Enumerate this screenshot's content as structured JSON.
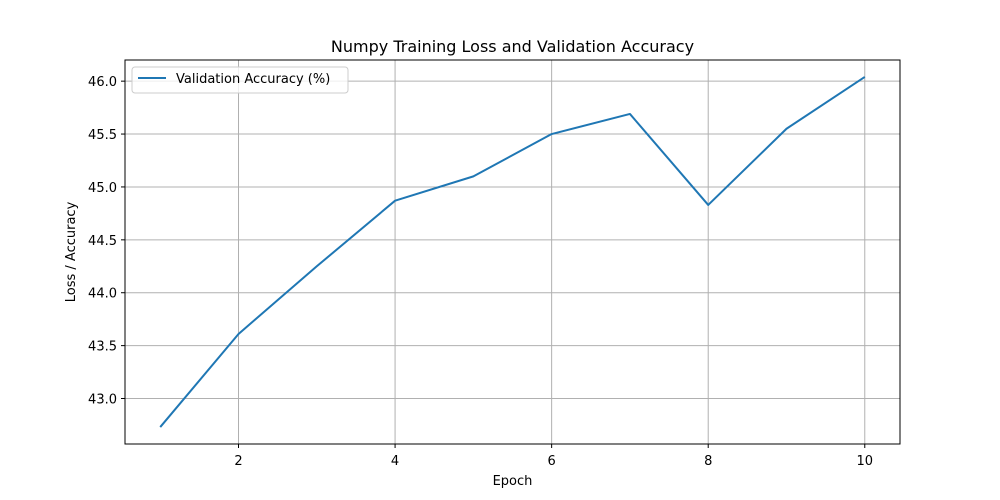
{
  "chart_data": {
    "type": "line",
    "title": "Numpy Training Loss and Validation Accuracy",
    "xlabel": "Epoch",
    "ylabel": "Loss / Accuracy",
    "xlim": [
      0.55,
      10.45
    ],
    "ylim": [
      42.57,
      46.2
    ],
    "xticks": [
      2,
      4,
      6,
      8,
      10
    ],
    "yticks": [
      43.0,
      43.5,
      44.0,
      44.5,
      45.0,
      45.5,
      46.0
    ],
    "grid": true,
    "legend_position": "top-left",
    "series": [
      {
        "name": "Validation Accuracy (%)",
        "color": "#1f77b4",
        "x": [
          1,
          2,
          3,
          4,
          5,
          6,
          7,
          8,
          9,
          10
        ],
        "y": [
          42.73,
          43.61,
          44.25,
          44.87,
          45.1,
          45.5,
          45.69,
          44.83,
          45.55,
          46.04
        ]
      }
    ]
  }
}
